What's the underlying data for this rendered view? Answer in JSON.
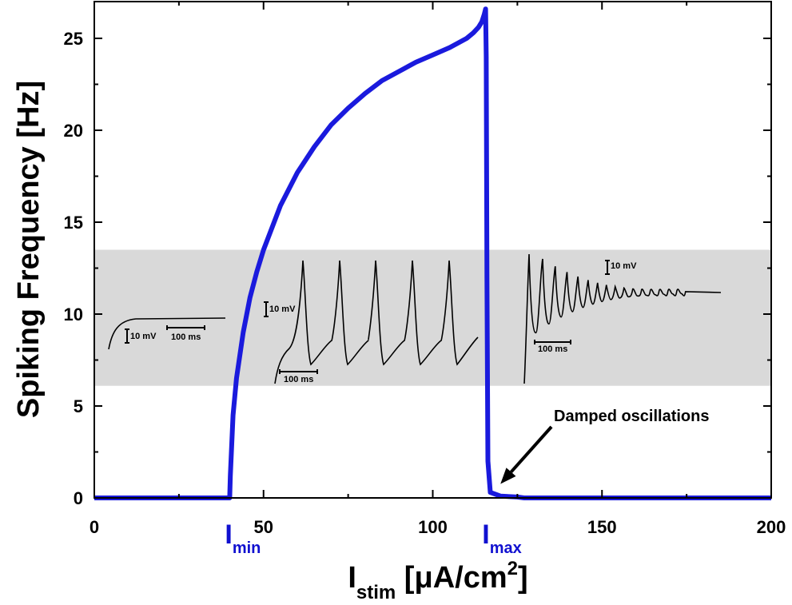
{
  "chart_data": {
    "type": "line",
    "title": "",
    "xlabel": "I",
    "xlabel_sub": "stim",
    "xlabel_unit_pre": " [μA/cm",
    "xlabel_unit_sup": "2",
    "xlabel_unit_post": "]",
    "ylabel": "Spiking Frequency [Hz]",
    "xlim": [
      0,
      200
    ],
    "ylim": [
      0,
      27
    ],
    "x_ticks": [
      0,
      50,
      100,
      150,
      200
    ],
    "y_ticks": [
      0,
      5,
      10,
      15,
      20,
      25
    ],
    "grid": false,
    "legend": "none",
    "line_color": "#1a1add",
    "shaded_band": {
      "y_from": 6.1,
      "y_to": 13.5,
      "color": "#d9d9d9"
    },
    "series": [
      {
        "x": [
          0,
          40,
          40.2,
          41,
          42,
          44,
          46,
          48,
          50,
          55,
          60,
          65,
          70,
          75,
          80,
          85,
          90,
          95,
          100,
          105,
          110,
          112,
          113.5,
          114.5,
          115.2,
          115.6,
          115.8,
          116,
          116.3,
          117,
          120,
          125,
          127,
          200
        ],
        "y": [
          0,
          0,
          1.2,
          4.5,
          6.5,
          9.0,
          10.9,
          12.3,
          13.5,
          15.9,
          17.7,
          19.1,
          20.3,
          21.2,
          22.0,
          22.7,
          23.2,
          23.7,
          24.1,
          24.5,
          25.0,
          25.3,
          25.6,
          25.9,
          26.3,
          26.6,
          24.0,
          12.0,
          2.0,
          0.3,
          0.1,
          0.05,
          0,
          0
        ]
      }
    ],
    "markers": [
      {
        "label": "I",
        "sub": "min",
        "x": 40
      },
      {
        "label": "I",
        "sub": "max",
        "x": 116
      }
    ],
    "annotations": [
      {
        "text": "Damped oscillations",
        "target_x": 120,
        "target_y": 0.5
      }
    ],
    "insets": [
      {
        "kind": "rest",
        "mv_label": "10 mV",
        "ms_label": "100 ms"
      },
      {
        "kind": "spiking",
        "mv_label": "10 mV",
        "ms_label": "100 ms"
      },
      {
        "kind": "damped",
        "mv_label": "10 mV",
        "ms_label": "100 ms"
      }
    ]
  }
}
